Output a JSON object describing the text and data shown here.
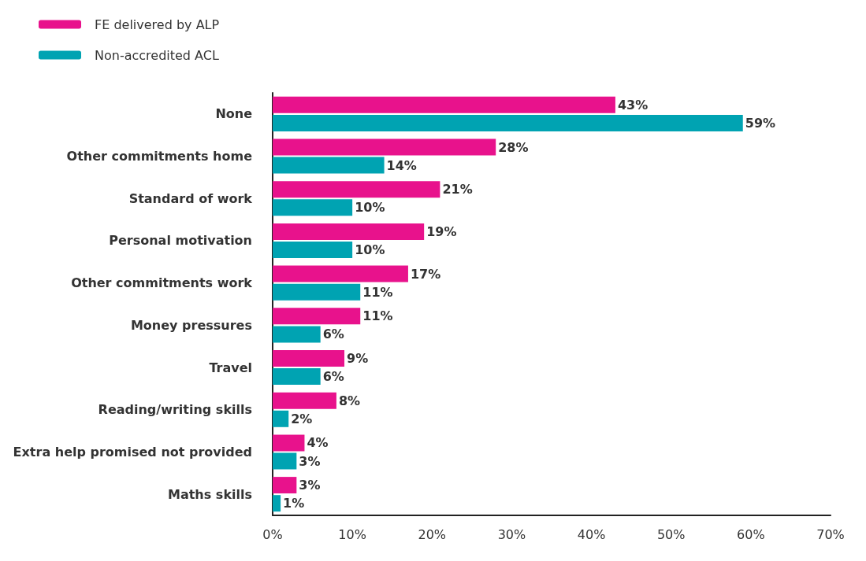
{
  "chart_data": {
    "type": "bar",
    "orientation": "horizontal",
    "categories": [
      "None",
      "Other commitments home",
      "Standard of work",
      "Personal motivation",
      "Other commitments work",
      "Money pressures",
      "Travel",
      "Reading/writing skills",
      "Extra help promised not provided",
      "Maths skills"
    ],
    "series": [
      {
        "name": "FE delivered by ALP",
        "color": "#e8128c",
        "values": [
          43,
          28,
          21,
          19,
          17,
          11,
          9,
          8,
          4,
          3
        ],
        "value_labels": [
          "43%",
          "28%",
          "21%",
          "19%",
          "17%",
          "11%",
          "9%",
          "8%",
          "4%",
          "3%"
        ]
      },
      {
        "name": "Non-accredited ACL",
        "color": "#00a3b2",
        "values": [
          59,
          14,
          10,
          10,
          11,
          6,
          6,
          2,
          3,
          1
        ],
        "value_labels": [
          "59%",
          "14%",
          "10%",
          "10%",
          "11%",
          "6%",
          "6%",
          "2%",
          "3%",
          "1%"
        ]
      }
    ],
    "xlim": [
      0,
      70
    ],
    "xticks": [
      {
        "value": 0,
        "label": "0%"
      },
      {
        "value": 10,
        "label": "10%"
      },
      {
        "value": 20,
        "label": "20%"
      },
      {
        "value": 30,
        "label": "30%"
      },
      {
        "value": 40,
        "label": "40%"
      },
      {
        "value": 50,
        "label": "50%"
      },
      {
        "value": 60,
        "label": "60%"
      },
      {
        "value": 70,
        "label": "70%"
      }
    ],
    "grid": false,
    "legend": "top left"
  }
}
